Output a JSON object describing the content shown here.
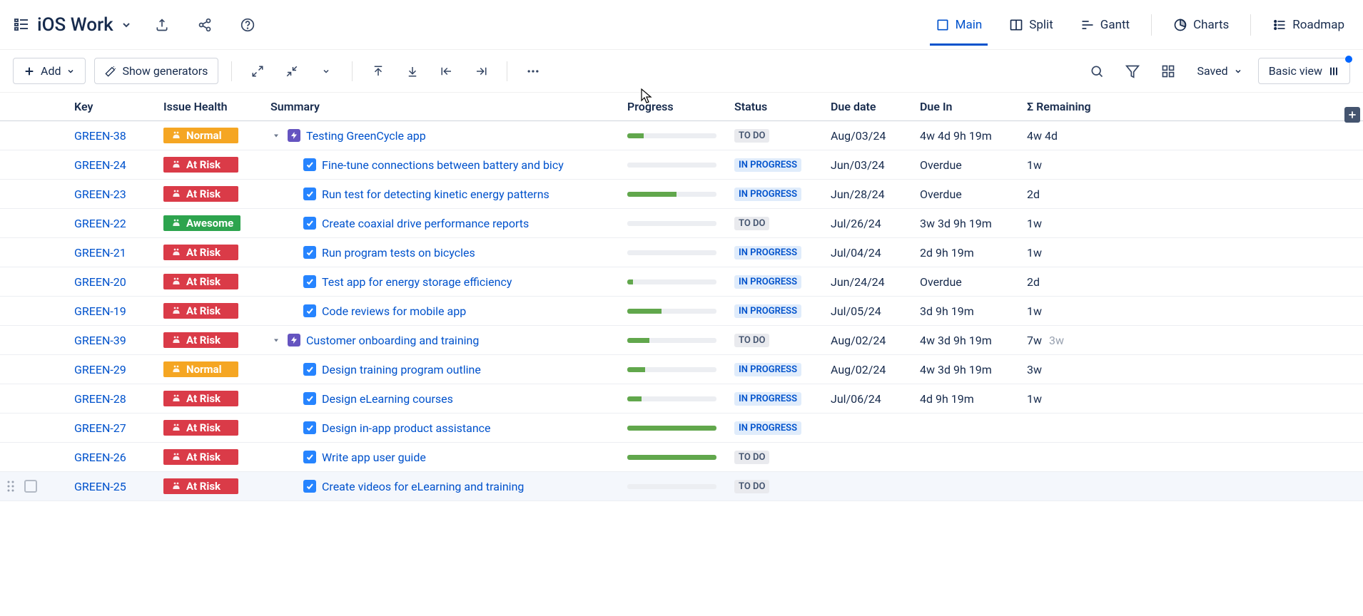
{
  "header": {
    "title": "iOS Work",
    "views": [
      {
        "icon": "square",
        "label": "Main",
        "active": true
      },
      {
        "icon": "split",
        "label": "Split",
        "active": false
      },
      {
        "icon": "gantt",
        "label": "Gantt",
        "active": false
      },
      {
        "icon": "charts",
        "label": "Charts",
        "active": false
      },
      {
        "icon": "roadmap",
        "label": "Roadmap",
        "active": false
      }
    ]
  },
  "toolbar": {
    "add_label": "Add",
    "generators_label": "Show generators",
    "saved_label": "Saved",
    "basic_view_label": "Basic view"
  },
  "columns": {
    "key": "Key",
    "health": "Issue Health",
    "summary": "Summary",
    "progress": "Progress",
    "status": "Status",
    "due": "Due date",
    "duein": "Due In",
    "remain_prefix": "Σ",
    "remain": "Remaining"
  },
  "health_colors": {
    "Normal": "#f5a623",
    "At Risk": "#da3b48",
    "Awesome": "#2da44e"
  },
  "status_class": {
    "TO DO": "status-todo",
    "IN PROGRESS": "status-inprogress"
  },
  "rows": [
    {
      "key": "GREEN-38",
      "health": "Normal",
      "indent": 0,
      "type": "epic",
      "expandable": true,
      "summary": "Testing GreenCycle app",
      "progress": 18,
      "status": "TO DO",
      "due": "Aug/03/24",
      "duein": "4w 4d 9h 19m",
      "remain": "4w 4d",
      "remain2": ""
    },
    {
      "key": "GREEN-24",
      "health": "At Risk",
      "indent": 1,
      "type": "task",
      "expandable": false,
      "summary": "Fine-tune connections between battery and bicy",
      "progress": 0,
      "status": "IN PROGRESS",
      "due": "Jun/03/24",
      "duein": "Overdue",
      "remain": "1w",
      "remain2": ""
    },
    {
      "key": "GREEN-23",
      "health": "At Risk",
      "indent": 1,
      "type": "task",
      "expandable": false,
      "summary": "Run test for detecting kinetic energy patterns",
      "progress": 55,
      "status": "IN PROGRESS",
      "due": "Jun/28/24",
      "duein": "Overdue",
      "remain": "2d",
      "remain2": ""
    },
    {
      "key": "GREEN-22",
      "health": "Awesome",
      "indent": 1,
      "type": "task",
      "expandable": false,
      "summary": "Create coaxial drive performance reports",
      "progress": 0,
      "status": "TO DO",
      "due": "Jul/26/24",
      "duein": "3w 3d 9h 19m",
      "remain": "1w",
      "remain2": ""
    },
    {
      "key": "GREEN-21",
      "health": "At Risk",
      "indent": 1,
      "type": "task",
      "expandable": false,
      "summary": "Run program tests on bicycles",
      "progress": 0,
      "status": "IN PROGRESS",
      "due": "Jul/04/24",
      "duein": "2d 9h 19m",
      "remain": "1w",
      "remain2": ""
    },
    {
      "key": "GREEN-20",
      "health": "At Risk",
      "indent": 1,
      "type": "task",
      "expandable": false,
      "summary": "Test app for energy storage efficiency",
      "progress": 6,
      "status": "IN PROGRESS",
      "due": "Jun/24/24",
      "duein": "Overdue",
      "remain": "2d",
      "remain2": ""
    },
    {
      "key": "GREEN-19",
      "health": "At Risk",
      "indent": 1,
      "type": "task",
      "expandable": false,
      "summary": "Code reviews for mobile app",
      "progress": 38,
      "status": "IN PROGRESS",
      "due": "Jul/05/24",
      "duein": "3d 9h 19m",
      "remain": "1w",
      "remain2": ""
    },
    {
      "key": "GREEN-39",
      "health": "At Risk",
      "indent": 0,
      "type": "epic",
      "expandable": true,
      "summary": "Customer onboarding and training",
      "progress": 25,
      "status": "TO DO",
      "due": "Aug/02/24",
      "duein": "4w 3d 9h 19m",
      "remain": "7w",
      "remain2": "3w"
    },
    {
      "key": "GREEN-29",
      "health": "Normal",
      "indent": 1,
      "type": "task",
      "expandable": false,
      "summary": "Design training program outline",
      "progress": 20,
      "status": "IN PROGRESS",
      "due": "Aug/02/24",
      "duein": "4w 3d 9h 19m",
      "remain": "3w",
      "remain2": ""
    },
    {
      "key": "GREEN-28",
      "health": "At Risk",
      "indent": 1,
      "type": "task",
      "expandable": false,
      "summary": "Design eLearning courses",
      "progress": 16,
      "status": "IN PROGRESS",
      "due": "Jul/06/24",
      "duein": "4d 9h 19m",
      "remain": "1w",
      "remain2": ""
    },
    {
      "key": "GREEN-27",
      "health": "At Risk",
      "indent": 1,
      "type": "task",
      "expandable": false,
      "summary": "Design in-app product assistance",
      "progress": 100,
      "status": "IN PROGRESS",
      "due": "",
      "duein": "",
      "remain": "",
      "remain2": ""
    },
    {
      "key": "GREEN-26",
      "health": "At Risk",
      "indent": 1,
      "type": "task",
      "expandable": false,
      "summary": "Write app user guide",
      "progress": 100,
      "status": "TO DO",
      "due": "",
      "duein": "",
      "remain": "",
      "remain2": ""
    },
    {
      "key": "GREEN-25",
      "health": "At Risk",
      "indent": 1,
      "type": "task",
      "expandable": false,
      "summary": "Create videos for eLearning and training",
      "progress": 0,
      "status": "TO DO",
      "due": "",
      "duein": "",
      "remain": "",
      "remain2": "",
      "hovered": true
    }
  ]
}
